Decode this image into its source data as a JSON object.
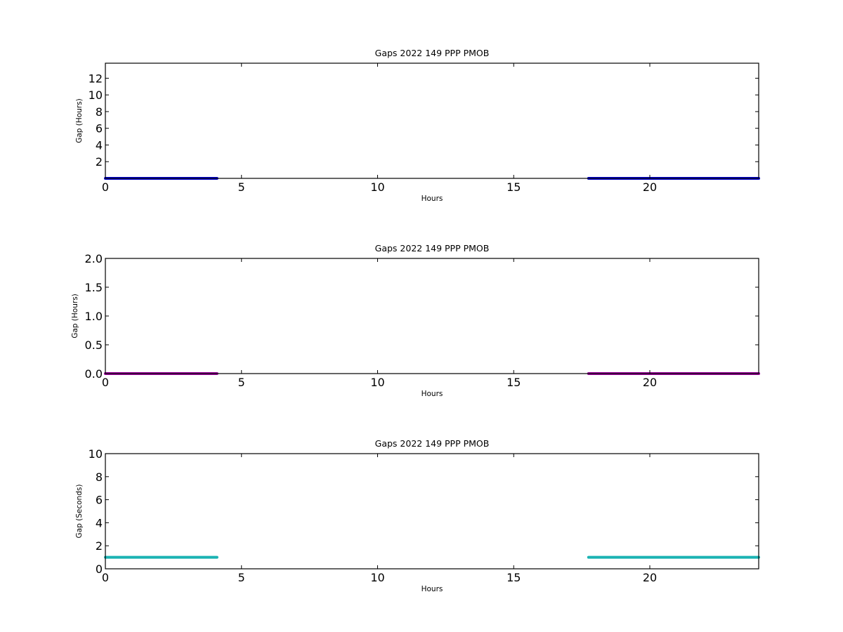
{
  "chart_data": [
    {
      "type": "scatter",
      "title": "Gaps 2022 149 PPP  PMOB",
      "xlabel": "Hours",
      "ylabel": "Gap (Hours)",
      "xlim": [
        0,
        24
      ],
      "ylim": [
        0,
        13.8
      ],
      "xticks": [
        0,
        5,
        10,
        15,
        20
      ],
      "yticks": [
        2,
        4,
        6,
        8,
        10,
        12
      ],
      "yticklabels": [
        "2",
        "4",
        "6",
        "8",
        "10",
        "12"
      ],
      "grid": false,
      "color": "#0000cc",
      "series": [
        {
          "segments": [
            {
              "x": [
                0,
                4.1
              ],
              "y": 0.0003
            },
            {
              "x": [
                17.75,
                24
              ],
              "y": 0.0003
            }
          ]
        }
      ]
    },
    {
      "type": "scatter",
      "title": "Gaps 2022 149 PPP  PMOB",
      "xlabel": "Hours",
      "ylabel": "Gap (Hours)",
      "xlim": [
        0,
        24
      ],
      "ylim": [
        0,
        2.0
      ],
      "xticks": [
        0,
        5,
        10,
        15,
        20
      ],
      "yticks": [
        0.0,
        0.5,
        1.0,
        1.5,
        2.0
      ],
      "yticklabels": [
        "0.0",
        "0.5",
        "1.0",
        "1.5",
        "2.0"
      ],
      "grid": false,
      "color": "#990099",
      "series": [
        {
          "segments": [
            {
              "x": [
                0,
                4.1
              ],
              "y": 0.0003
            },
            {
              "x": [
                17.75,
                24
              ],
              "y": 0.0003
            }
          ]
        }
      ]
    },
    {
      "type": "scatter",
      "title": "Gaps 2022 149 PPP  PMOB",
      "xlabel": "Hours",
      "ylabel": "Gap (Seconds)",
      "xlim": [
        0,
        24
      ],
      "ylim": [
        0,
        10
      ],
      "xticks": [
        0,
        5,
        10,
        15,
        20
      ],
      "yticks": [
        0,
        2,
        4,
        6,
        8,
        10
      ],
      "yticklabels": [
        "0",
        "2",
        "4",
        "6",
        "8",
        "10"
      ],
      "grid": false,
      "color": "#1ab3b3",
      "series": [
        {
          "segments": [
            {
              "x": [
                0,
                4.1
              ],
              "y": 1
            },
            {
              "x": [
                17.75,
                24
              ],
              "y": 1
            }
          ]
        }
      ]
    }
  ]
}
